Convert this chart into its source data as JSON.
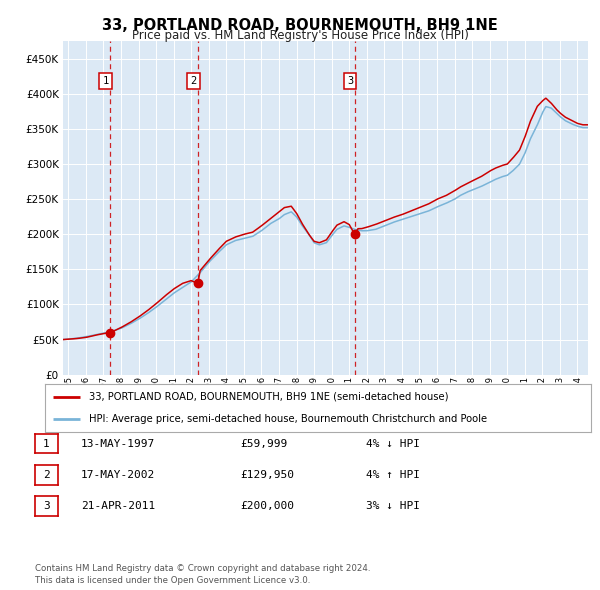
{
  "title": "33, PORTLAND ROAD, BOURNEMOUTH, BH9 1NE",
  "subtitle": "Price paid vs. HM Land Registry's House Price Index (HPI)",
  "plot_bg_color": "#dce9f5",
  "hpi_color": "#7ab4d8",
  "price_color": "#cc0000",
  "marker_color": "#cc0000",
  "vline_color": "#cc0000",
  "grid_color": "#ffffff",
  "sale_points": [
    {
      "year": 1997.37,
      "price": 59999,
      "label": "1"
    },
    {
      "year": 2002.38,
      "price": 129950,
      "label": "2"
    },
    {
      "year": 2011.31,
      "price": 200000,
      "label": "3"
    }
  ],
  "legend_entries": [
    {
      "color": "#cc0000",
      "text": "33, PORTLAND ROAD, BOURNEMOUTH, BH9 1NE (semi-detached house)"
    },
    {
      "color": "#7ab4d8",
      "text": "HPI: Average price, semi-detached house, Bournemouth Christchurch and Poole"
    }
  ],
  "table_rows": [
    {
      "num": "1",
      "date": "13-MAY-1997",
      "price": "£59,999",
      "hpi": "4% ↓ HPI"
    },
    {
      "num": "2",
      "date": "17-MAY-2002",
      "price": "£129,950",
      "hpi": "4% ↑ HPI"
    },
    {
      "num": "3",
      "date": "21-APR-2011",
      "price": "£200,000",
      "hpi": "3% ↓ HPI"
    }
  ],
  "footer": "Contains HM Land Registry data © Crown copyright and database right 2024.\nThis data is licensed under the Open Government Licence v3.0.",
  "ylim": [
    0,
    475000
  ],
  "xlim_start": 1994.7,
  "xlim_end": 2024.6,
  "yticks": [
    0,
    50000,
    100000,
    150000,
    200000,
    250000,
    300000,
    350000,
    400000,
    450000
  ],
  "hpi_knots": [
    1994.7,
    1995.0,
    1995.5,
    1996.0,
    1996.5,
    1997.0,
    1997.5,
    1998.0,
    1998.5,
    1999.0,
    1999.5,
    2000.0,
    2000.5,
    2001.0,
    2001.5,
    2002.0,
    2002.5,
    2003.0,
    2003.5,
    2004.0,
    2004.5,
    2005.0,
    2005.5,
    2006.0,
    2006.5,
    2007.0,
    2007.3,
    2007.7,
    2008.0,
    2008.3,
    2008.7,
    2009.0,
    2009.3,
    2009.7,
    2010.0,
    2010.3,
    2010.7,
    2011.0,
    2011.3,
    2011.7,
    2012.0,
    2012.5,
    2013.0,
    2013.5,
    2014.0,
    2014.5,
    2015.0,
    2015.5,
    2016.0,
    2016.5,
    2017.0,
    2017.3,
    2017.7,
    2018.0,
    2018.5,
    2019.0,
    2019.3,
    2019.7,
    2020.0,
    2020.3,
    2020.7,
    2021.0,
    2021.3,
    2021.7,
    2022.0,
    2022.2,
    2022.5,
    2022.8,
    2023.0,
    2023.3,
    2023.7,
    2024.0,
    2024.3,
    2024.6
  ],
  "hpi_vals": [
    50000,
    50500,
    52000,
    54000,
    56500,
    59000,
    62000,
    66000,
    72000,
    79000,
    87000,
    96000,
    106000,
    116000,
    124000,
    132000,
    145000,
    160000,
    173000,
    185000,
    191000,
    194000,
    197000,
    205000,
    215000,
    222000,
    228000,
    232000,
    225000,
    213000,
    200000,
    188000,
    185000,
    188000,
    198000,
    207000,
    212000,
    210000,
    207000,
    205000,
    205000,
    207000,
    212000,
    217000,
    221000,
    225000,
    229000,
    233000,
    239000,
    244000,
    250000,
    255000,
    260000,
    263000,
    268000,
    274000,
    278000,
    282000,
    284000,
    290000,
    300000,
    315000,
    335000,
    355000,
    373000,
    382000,
    380000,
    373000,
    368000,
    362000,
    357000,
    354000,
    352000,
    352000
  ],
  "price_knots": [
    1994.7,
    1995.0,
    1995.5,
    1996.0,
    1996.5,
    1997.0,
    1997.37,
    1997.5,
    1998.0,
    1998.5,
    1999.0,
    1999.5,
    2000.0,
    2000.5,
    2001.0,
    2001.5,
    2002.0,
    2002.38,
    2002.5,
    2003.0,
    2003.5,
    2004.0,
    2004.5,
    2005.0,
    2005.5,
    2006.0,
    2006.5,
    2007.0,
    2007.3,
    2007.7,
    2008.0,
    2008.3,
    2008.7,
    2009.0,
    2009.3,
    2009.7,
    2010.0,
    2010.3,
    2010.7,
    2011.0,
    2011.31,
    2011.5,
    2011.7,
    2012.0,
    2012.5,
    2013.0,
    2013.5,
    2014.0,
    2014.5,
    2015.0,
    2015.5,
    2016.0,
    2016.5,
    2017.0,
    2017.3,
    2017.7,
    2018.0,
    2018.5,
    2019.0,
    2019.3,
    2019.7,
    2020.0,
    2020.3,
    2020.7,
    2021.0,
    2021.3,
    2021.7,
    2022.0,
    2022.2,
    2022.5,
    2022.8,
    2023.0,
    2023.3,
    2023.7,
    2024.0,
    2024.3,
    2024.6
  ],
  "price_vals": [
    50000,
    50500,
    51500,
    53000,
    56000,
    58500,
    59999,
    61000,
    67000,
    74000,
    82000,
    91000,
    101000,
    112000,
    122000,
    130000,
    134000,
    129950,
    148000,
    163000,
    177000,
    190000,
    196000,
    200000,
    203000,
    212000,
    222000,
    232000,
    238000,
    240000,
    230000,
    216000,
    200000,
    190000,
    188000,
    192000,
    203000,
    213000,
    218000,
    214000,
    200000,
    208000,
    208000,
    210000,
    214000,
    219000,
    224000,
    228000,
    233000,
    238000,
    243000,
    250000,
    255000,
    262000,
    267000,
    272000,
    276000,
    282000,
    290000,
    294000,
    298000,
    300000,
    308000,
    320000,
    338000,
    360000,
    382000,
    390000,
    394000,
    387000,
    378000,
    373000,
    367000,
    362000,
    358000,
    356000,
    356000
  ]
}
